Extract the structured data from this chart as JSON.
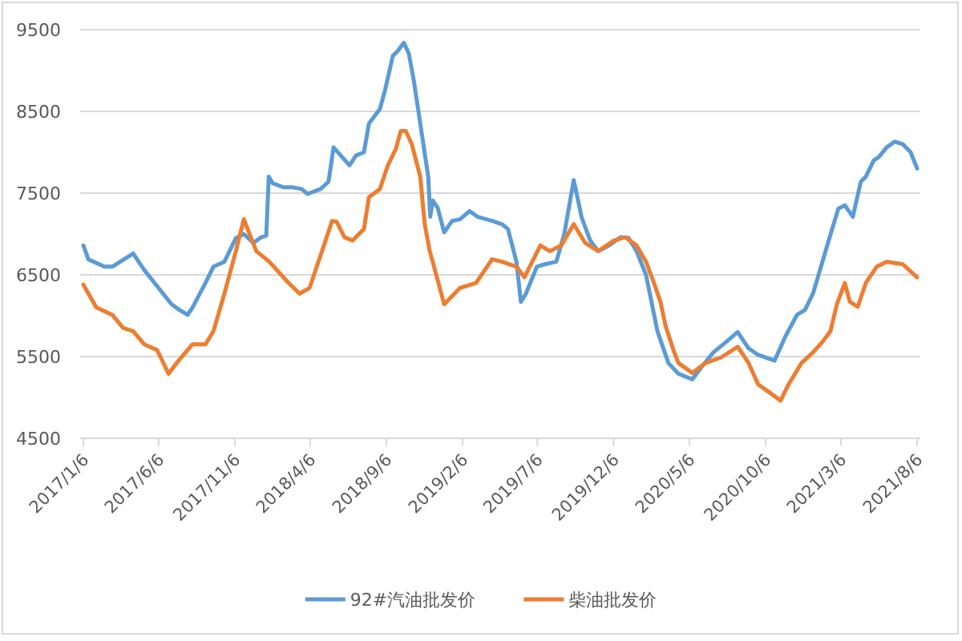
{
  "chart_data": {
    "type": "line",
    "series": [
      {
        "name": "92#汽油批发价",
        "color": "#5b9bd5",
        "x": [
          "2017-01-06",
          "2017-01-16",
          "2017-02-17",
          "2017-03-05",
          "2017-04-16",
          "2017-05-08",
          "2017-07-02",
          "2017-07-18",
          "2017-08-03",
          "2017-08-13",
          "2017-09-08",
          "2017-09-24",
          "2017-10-16",
          "2017-11-08",
          "2017-11-24",
          "2017-12-13",
          "2017-12-29",
          "2018-01-08",
          "2018-01-13",
          "2018-01-21",
          "2018-02-12",
          "2018-03-03",
          "2018-03-20",
          "2018-04-01",
          "2018-04-27",
          "2018-05-13",
          "2018-05-23",
          "2018-06-24",
          "2018-07-07",
          "2018-07-23",
          "2018-08-02",
          "2018-08-24",
          "2018-09-03",
          "2018-09-19",
          "2018-09-29",
          "2018-10-11",
          "2018-10-21",
          "2018-10-31",
          "2018-11-16",
          "2018-11-29",
          "2018-12-03",
          "2018-12-08",
          "2018-12-18",
          "2018-12-31",
          "2019-01-16",
          "2019-02-01",
          "2019-02-20",
          "2019-03-08",
          "2019-04-06",
          "2019-04-26",
          "2019-05-08",
          "2019-05-25",
          "2019-06-03",
          "2019-06-13",
          "2019-07-05",
          "2019-07-21",
          "2019-08-13",
          "2019-08-29",
          "2019-09-17",
          "2019-10-03",
          "2019-10-20",
          "2019-11-05",
          "2019-11-27",
          "2019-12-20",
          "2020-01-05",
          "2020-01-21",
          "2020-02-09",
          "2020-03-03",
          "2020-03-25",
          "2020-04-14",
          "2020-05-12",
          "2020-05-29",
          "2020-06-23",
          "2020-07-19",
          "2020-08-11",
          "2020-09-02",
          "2020-09-21",
          "2020-10-24",
          "2020-11-15",
          "2020-12-08",
          "2020-12-24",
          "2021-01-09",
          "2021-01-28",
          "2021-02-13",
          "2021-03-01",
          "2021-03-14",
          "2021-03-30",
          "2021-04-15",
          "2021-04-25",
          "2021-05-11",
          "2021-05-21",
          "2021-06-06",
          "2021-06-22",
          "2021-07-08",
          "2021-07-24",
          "2021-08-06"
        ],
        "values": [
          6860,
          6690,
          6600,
          6600,
          6760,
          6560,
          6140,
          6070,
          6010,
          6100,
          6400,
          6600,
          6660,
          6950,
          7000,
          6890,
          6960,
          6980,
          7700,
          7620,
          7570,
          7570,
          7550,
          7490,
          7550,
          7640,
          8060,
          7840,
          7960,
          8000,
          8350,
          8530,
          8750,
          9180,
          9240,
          9340,
          9210,
          8880,
          8230,
          7700,
          7210,
          7410,
          7320,
          7020,
          7160,
          7180,
          7280,
          7210,
          7160,
          7120,
          7060,
          6660,
          6170,
          6270,
          6600,
          6630,
          6660,
          7000,
          7660,
          7200,
          6920,
          6790,
          6860,
          6960,
          6950,
          6790,
          6500,
          5810,
          5420,
          5290,
          5220,
          5360,
          5550,
          5680,
          5800,
          5600,
          5520,
          5450,
          5750,
          6010,
          6070,
          6270,
          6660,
          6990,
          7310,
          7350,
          7210,
          7640,
          7700,
          7900,
          7940,
          8060,
          8130,
          8100,
          8000,
          7800
        ]
      },
      {
        "name": "柴油批发价",
        "color": "#ed7d31",
        "x": [
          "2017-01-06",
          "2017-02-01",
          "2017-03-05",
          "2017-03-27",
          "2017-04-16",
          "2017-05-08",
          "2017-06-03",
          "2017-06-26",
          "2017-07-12",
          "2017-08-13",
          "2017-09-08",
          "2017-09-24",
          "2017-10-16",
          "2017-11-08",
          "2017-11-24",
          "2017-12-19",
          "2018-01-14",
          "2018-02-22",
          "2018-03-16",
          "2018-04-05",
          "2018-05-07",
          "2018-05-20",
          "2018-05-29",
          "2018-06-14",
          "2018-06-30",
          "2018-07-23",
          "2018-08-02",
          "2018-08-24",
          "2018-09-09",
          "2018-09-25",
          "2018-10-05",
          "2018-10-15",
          "2018-10-27",
          "2018-11-13",
          "2018-11-22",
          "2018-12-02",
          "2018-12-08",
          "2018-12-31",
          "2019-02-01",
          "2019-03-05",
          "2019-04-06",
          "2019-04-26",
          "2019-05-25",
          "2019-06-10",
          "2019-07-12",
          "2019-07-31",
          "2019-08-23",
          "2019-09-17",
          "2019-10-10",
          "2019-11-05",
          "2019-12-07",
          "2019-12-29",
          "2020-01-21",
          "2020-02-09",
          "2020-02-25",
          "2020-03-09",
          "2020-03-19",
          "2020-04-04",
          "2020-04-14",
          "2020-05-12",
          "2020-06-07",
          "2020-07-09",
          "2020-08-11",
          "2020-09-02",
          "2020-09-21",
          "2020-10-14",
          "2020-11-05",
          "2020-11-21",
          "2020-12-17",
          "2021-01-09",
          "2021-01-28",
          "2021-02-13",
          "2021-02-26",
          "2021-03-14",
          "2021-03-24",
          "2021-04-09",
          "2021-04-25",
          "2021-05-17",
          "2021-06-06",
          "2021-07-08",
          "2021-08-06"
        ],
        "values": [
          6380,
          6100,
          6010,
          5850,
          5810,
          5650,
          5580,
          5290,
          5420,
          5650,
          5650,
          5810,
          6270,
          6790,
          7180,
          6790,
          6660,
          6400,
          6270,
          6340,
          6920,
          7160,
          7150,
          6960,
          6920,
          7060,
          7450,
          7550,
          7840,
          8040,
          8260,
          8260,
          8100,
          7700,
          7120,
          6790,
          6660,
          6140,
          6340,
          6400,
          6690,
          6660,
          6600,
          6470,
          6860,
          6790,
          6860,
          7120,
          6890,
          6790,
          6920,
          6960,
          6860,
          6660,
          6400,
          6170,
          5880,
          5580,
          5420,
          5300,
          5420,
          5490,
          5620,
          5420,
          5160,
          5060,
          4960,
          5160,
          5420,
          5550,
          5680,
          5810,
          6140,
          6400,
          6170,
          6110,
          6400,
          6600,
          6660,
          6630,
          6470
        ]
      }
    ],
    "xlim": [
      "2017-01-06",
      "2021-08-06"
    ],
    "xticks": [
      {
        "value": "2017-01-06",
        "label": "2017/1/6"
      },
      {
        "value": "2017-06-06",
        "label": "2017/6/6"
      },
      {
        "value": "2017-11-06",
        "label": "2017/11/6"
      },
      {
        "value": "2018-04-06",
        "label": "2018/4/6"
      },
      {
        "value": "2018-09-06",
        "label": "2018/9/6"
      },
      {
        "value": "2019-02-06",
        "label": "2019/2/6"
      },
      {
        "value": "2019-07-06",
        "label": "2019/7/6"
      },
      {
        "value": "2019-12-06",
        "label": "2019/12/6"
      },
      {
        "value": "2020-05-06",
        "label": "2020/5/6"
      },
      {
        "value": "2020-10-06",
        "label": "2020/10/6"
      },
      {
        "value": "2021-03-06",
        "label": "2021/3/6"
      },
      {
        "value": "2021-08-06",
        "label": "2021/8/6"
      }
    ],
    "ylim": [
      4500,
      9500
    ],
    "yticks": [
      4500,
      5500,
      6500,
      7500,
      8500,
      9500
    ],
    "grid": "y",
    "legend": "bottom",
    "marker": "none",
    "line_style": "solid"
  }
}
